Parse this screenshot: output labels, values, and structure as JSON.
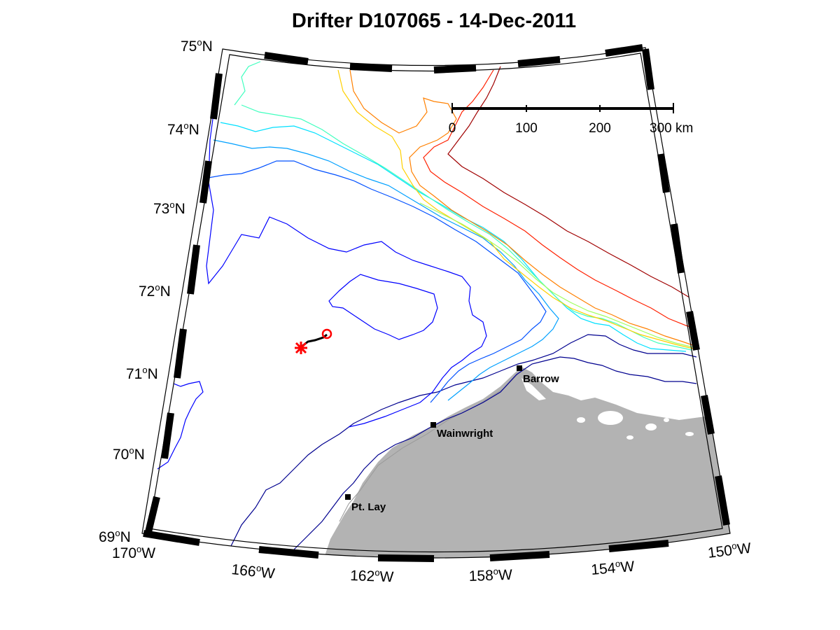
{
  "title": "Drifter D107065 - 14-Dec-2011",
  "latitude_labels": [
    {
      "deg": "75",
      "hemi": "N"
    },
    {
      "deg": "74",
      "hemi": "N"
    },
    {
      "deg": "73",
      "hemi": "N"
    },
    {
      "deg": "72",
      "hemi": "N"
    },
    {
      "deg": "71",
      "hemi": "N"
    },
    {
      "deg": "70",
      "hemi": "N"
    },
    {
      "deg": "69",
      "hemi": "N"
    }
  ],
  "longitude_labels": [
    {
      "deg": "170",
      "hemi": "W"
    },
    {
      "deg": "166",
      "hemi": "W"
    },
    {
      "deg": "162",
      "hemi": "W"
    },
    {
      "deg": "158",
      "hemi": "W"
    },
    {
      "deg": "154",
      "hemi": "W"
    },
    {
      "deg": "150",
      "hemi": "W"
    }
  ],
  "degree_symbol": "o",
  "places": [
    {
      "name": "Barrow",
      "kind": "town-marker"
    },
    {
      "name": "Wainwright",
      "kind": "town-marker"
    },
    {
      "name": "Pt. Lay",
      "kind": "town-marker"
    }
  ],
  "scale_bar": {
    "ticks": [
      "0",
      "100",
      "200",
      "300 km"
    ]
  },
  "drifter": {
    "start_symbol": "circle",
    "end_symbol": "asterisk",
    "color": "#ff0000"
  },
  "colors": {
    "land": "#b3b3b3",
    "track": "#000000",
    "marker": "#ff0000",
    "contours": [
      "#00008f",
      "#0000ff",
      "#0050ff",
      "#00a0ff",
      "#00e0ff",
      "#40ffbf",
      "#a0ff60",
      "#ffd000",
      "#ff8000",
      "#ff2000",
      "#a00000"
    ]
  }
}
